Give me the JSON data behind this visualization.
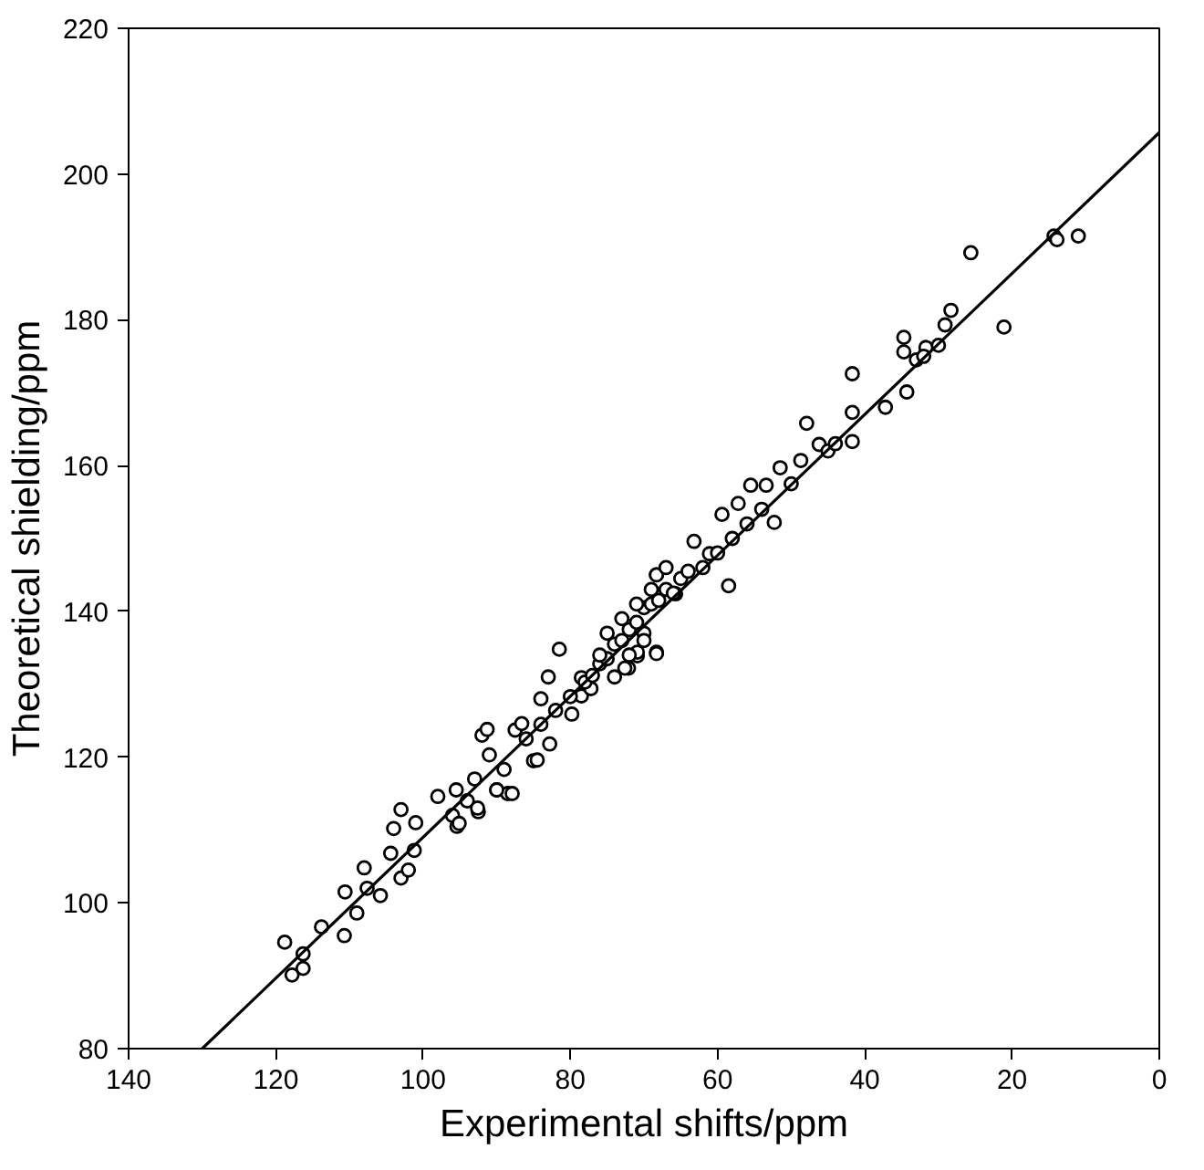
{
  "chart_data": {
    "type": "scatter",
    "xlabel": "Experimental shifts/ppm",
    "ylabel": "Theoretical shielding/ppm",
    "xlim": [
      140,
      0
    ],
    "ylim": [
      80,
      220
    ],
    "xticks": [
      140,
      120,
      100,
      80,
      60,
      40,
      20,
      0
    ],
    "yticks": [
      80,
      100,
      120,
      140,
      160,
      180,
      200,
      220
    ],
    "grid": false,
    "marker": "circle",
    "series": [
      {
        "color": "#000000",
        "x": [
          118.8,
          117.8,
          116.3,
          116.3,
          113.8,
          110.7,
          110.6,
          109,
          108,
          107.6,
          105.8,
          104.4,
          104,
          103,
          103,
          102,
          101.2,
          101,
          98,
          96,
          95.5,
          95.4,
          94,
          93,
          92.5,
          92,
          91,
          90,
          89,
          88.5,
          87.5,
          85,
          84,
          83,
          70.9,
          72.1,
          68.3,
          68.3,
          78.5,
          77.2,
          82.8,
          84.5,
          87.9,
          90,
          91.3,
          92.6,
          95.1,
          21.1,
          28.3,
          29.1,
          31.7,
          34.7,
          34.7,
          34.3,
          37.2,
          41.7,
          41.7,
          41.7,
          47.9,
          46.2,
          48.7,
          51.5,
          52.3,
          55.5,
          53.4,
          59.4,
          57.2,
          63.2,
          58.5,
          61.1,
          68.3,
          65.7,
          70.9,
          68.3,
          72.6,
          81.5,
          78.5,
          79.8,
          86.6,
          25.6,
          14.3,
          13.9,
          11,
          86,
          84,
          82,
          80,
          78,
          77,
          76,
          75,
          74,
          73,
          72,
          71,
          70,
          69,
          68,
          67,
          66,
          65,
          64,
          62,
          60,
          58,
          56,
          54,
          50,
          45,
          44,
          33,
          32,
          30,
          75,
          73,
          71,
          70,
          69,
          67,
          74,
          76,
          72,
          70
        ],
        "values": [
          94.6,
          90.1,
          91,
          93,
          96.7,
          95.5,
          101.5,
          98.6,
          104.8,
          102,
          101,
          106.8,
          110.2,
          112.8,
          103.4,
          104.5,
          107.2,
          111,
          114.6,
          112,
          115.5,
          110.5,
          114,
          117,
          112.5,
          123,
          120.3,
          115.5,
          118.3,
          115,
          123.7,
          119.5,
          128,
          131,
          133.9,
          132.2,
          134.4,
          145,
          128.4,
          129.4,
          121.8,
          119.6,
          115,
          115.5,
          123.8,
          113,
          110.9,
          179,
          181.3,
          179.3,
          176.2,
          177.6,
          175.6,
          170.1,
          168,
          172.6,
          167.3,
          163.3,
          165.8,
          162.9,
          160.7,
          159.7,
          152.2,
          157.3,
          157.3,
          153.3,
          154.8,
          149.6,
          143.5,
          147.9,
          145,
          142.4,
          134.4,
          134.2,
          132.2,
          134.8,
          130.9,
          125.9,
          124.6,
          189.2,
          191.5,
          191,
          191.5,
          122.5,
          124.5,
          126.4,
          128.3,
          130.3,
          131.2,
          132.8,
          133.5,
          135.5,
          136,
          137.5,
          138.5,
          140.5,
          141,
          141.5,
          143,
          142.5,
          144.5,
          145.5,
          146,
          148,
          150,
          152,
          154,
          157.5,
          162,
          163,
          174.5,
          175,
          176.5,
          137,
          139,
          141,
          137,
          143,
          146,
          131,
          134,
          134,
          136
        ]
      },
      {
        "color": "#000000",
        "type": "line",
        "marker": "none",
        "line_style": "solid",
        "x": [
          130,
          0
        ],
        "values": [
          80,
          205.7
        ]
      }
    ]
  }
}
